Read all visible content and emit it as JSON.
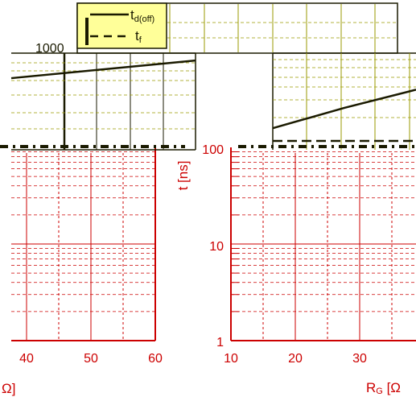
{
  "chart_data": [
    {
      "type": "line",
      "panel": "left",
      "x_ticks": [
        "40",
        "50",
        "60"
      ],
      "xlim": [
        35,
        60
      ],
      "yscale": "log",
      "xlabel_fragment": "Ω]",
      "series": [
        {
          "name": "td(off)",
          "style": "solid",
          "x": [
            35,
            60
          ],
          "y": [
            480,
            760
          ]
        }
      ]
    },
    {
      "type": "line",
      "panel": "right",
      "x_ticks": [
        "10",
        "20",
        "30"
      ],
      "y_ticks": [
        "1",
        "10",
        "100",
        "1000"
      ],
      "xlim": [
        10,
        37
      ],
      "ylim": [
        1,
        1000
      ],
      "yscale": "log",
      "xlabel": "RG [Ω",
      "ylabel": "t [ns]",
      "series": [
        {
          "name": "td(off)",
          "style": "solid",
          "x": [
            16,
            26,
            36
          ],
          "y": [
            140,
            200,
            275
          ]
        },
        {
          "name": "tf",
          "style": "dashed",
          "x": [
            16,
            36
          ],
          "y": [
            112,
            112
          ]
        }
      ],
      "legend": {
        "position": "top",
        "items": [
          {
            "label_main": "t",
            "label_sub": "d(off)",
            "style": "solid"
          },
          {
            "label_main": "t",
            "label_sub": "f",
            "style": "dashed"
          }
        ]
      }
    }
  ],
  "labels": {
    "top_ytick": "1000",
    "right_xlabel_main": "R",
    "right_xlabel_sub": "G",
    "right_xlabel_rest": " [Ω"
  },
  "colors": {
    "grid": "#cc0000",
    "upper_grid": "#9a9a00",
    "curve": "#1a1a00",
    "legend_bg": "#ffff99"
  }
}
